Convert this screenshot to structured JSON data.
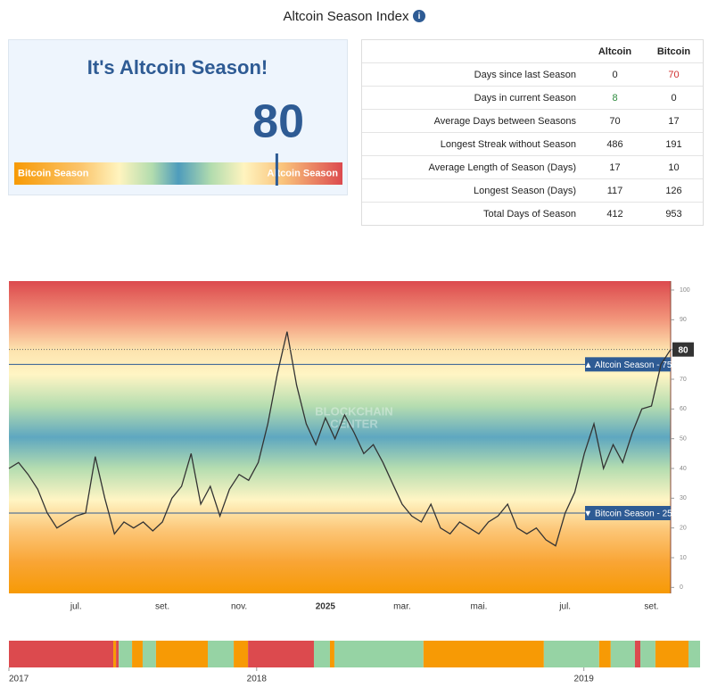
{
  "header": {
    "title": "Altcoin Season Index",
    "info_icon": "i"
  },
  "gauge": {
    "heading": "It's Altcoin Season!",
    "value": 80,
    "lim": [
      0,
      100
    ],
    "left_label": "Bitcoin Season",
    "right_label": "Altcoin Season"
  },
  "table": {
    "columns": [
      "Altcoin",
      "Bitcoin"
    ],
    "rows": [
      {
        "label": "Days since last Season",
        "values": [
          0,
          70
        ]
      },
      {
        "label": "Days in current Season",
        "values": [
          8,
          0
        ]
      },
      {
        "label": "Average Days between Seasons",
        "values": [
          70,
          17
        ]
      },
      {
        "label": "Longest Streak without Season",
        "values": [
          486,
          191
        ]
      },
      {
        "label": "Average Length of Season (Days)",
        "values": [
          17,
          10
        ]
      },
      {
        "label": "Longest Season (Days)",
        "values": [
          117,
          126
        ]
      },
      {
        "label": "Total Days of Season",
        "values": [
          412,
          953
        ]
      }
    ]
  },
  "chart_data": [
    {
      "type": "line",
      "watermark": [
        "BLOCKCHAIN",
        "CENTER"
      ],
      "categories": [
        null,
        null,
        null,
        null,
        null,
        null,
        null,
        "jul.",
        null,
        null,
        null,
        null,
        null,
        null,
        null,
        null,
        "set.",
        null,
        null,
        null,
        null,
        null,
        null,
        null,
        "nov.",
        null,
        null,
        null,
        null,
        null,
        null,
        null,
        null,
        "2025",
        null,
        null,
        null,
        null,
        null,
        null,
        null,
        "mar.",
        null,
        null,
        null,
        null,
        null,
        null,
        null,
        "mai.",
        null,
        null,
        null,
        null,
        null,
        null,
        null,
        null,
        "jul.",
        null,
        null,
        null,
        null,
        null,
        null,
        null,
        null,
        "set.",
        null,
        null
      ],
      "series": [
        {
          "name": "Altcoin Season Index",
          "color": "#333333",
          "values": [
            40,
            42,
            38,
            33,
            25,
            20,
            22,
            24,
            25,
            44,
            30,
            18,
            22,
            20,
            22,
            19,
            22,
            30,
            34,
            45,
            28,
            34,
            24,
            33,
            38,
            36,
            42,
            55,
            72,
            86,
            68,
            55,
            48,
            57,
            50,
            58,
            52,
            45,
            48,
            42,
            35,
            28,
            24,
            22,
            28,
            20,
            18,
            22,
            20,
            18,
            22,
            24,
            28,
            20,
            18,
            20,
            16,
            14,
            25,
            32,
            45,
            55,
            40,
            48,
            42,
            52,
            60,
            61,
            75,
            80
          ]
        }
      ],
      "ylim": [
        -2,
        103
      ],
      "yticks": [
        0,
        10,
        20,
        30,
        40,
        50,
        60,
        70,
        80,
        90,
        100
      ],
      "thresholds": [
        {
          "value": 75,
          "label": "▲ Altcoin Season - 75"
        },
        {
          "value": 25,
          "label": "▼ Bitcoin Season - 25"
        }
      ]
    },
    {
      "type": "timeline",
      "xlim": [
        0,
        2801
      ],
      "xticks": [
        {
          "value": 0,
          "label": "2017"
        },
        {
          "value": 1004,
          "label": "2018"
        },
        {
          "value": 2330,
          "label": "2019"
        }
      ],
      "segments": [
        {
          "color": "#dc4a4e",
          "value": 423
        },
        {
          "color": "#f79a05",
          "value": 11
        },
        {
          "color": "#dc4a4e",
          "value": 11
        },
        {
          "color": "#96d3a4",
          "value": 54
        },
        {
          "color": "#f79a05",
          "value": 43
        },
        {
          "color": "#96d3a4",
          "value": 54
        },
        {
          "color": "#f79a05",
          "value": 210
        },
        {
          "color": "#96d3a4",
          "value": 105
        },
        {
          "color": "#f79a05",
          "value": 58
        },
        {
          "color": "#dc4a4e",
          "value": 267
        },
        {
          "color": "#96d3a4",
          "value": 65
        },
        {
          "color": "#f79a05",
          "value": 18
        },
        {
          "color": "#96d3a4",
          "value": 361
        },
        {
          "color": "#f79a05",
          "value": 488
        },
        {
          "color": "#96d3a4",
          "value": 224
        },
        {
          "color": "#f79a05",
          "value": 47
        },
        {
          "color": "#96d3a4",
          "value": 98
        },
        {
          "color": "#dc4a4e",
          "value": 22
        },
        {
          "color": "#96d3a4",
          "value": 61
        },
        {
          "color": "#f79a05",
          "value": 134
        },
        {
          "color": "#96d3a4",
          "value": 47
        }
      ]
    }
  ]
}
